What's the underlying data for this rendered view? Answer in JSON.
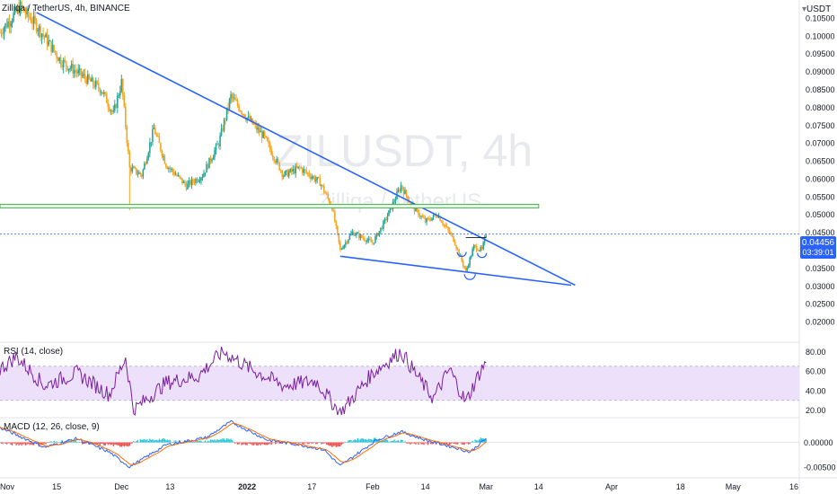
{
  "header": {
    "legend": "Zilliqa / TetherUS, 4h, BINANCE",
    "watermark_symbol": "ZILUSDT, 4h",
    "watermark_name": "Zilliqa / TetherUS"
  },
  "price_axis": {
    "unit": "USDT",
    "ticks": [
      "0.10500",
      "0.10000",
      "0.09500",
      "0.09000",
      "0.08500",
      "0.08000",
      "0.07500",
      "0.07000",
      "0.06500",
      "0.06000",
      "0.05500",
      "0.05000",
      "0.04500",
      "0.04000",
      "0.03500",
      "0.03000",
      "0.02500",
      "0.02000"
    ],
    "current_price": "0.04456",
    "countdown": "03:39:01"
  },
  "rsi": {
    "label": "RSI (14, close)",
    "ticks": [
      "80.00",
      "60.00",
      "40.00",
      "20.00"
    ]
  },
  "macd": {
    "label": "MACD (12, 26, close, 9)",
    "ticks": [
      "0.00000",
      "-0.00500"
    ]
  },
  "time_axis": {
    "ticks": [
      "Nov",
      "15",
      "Dec",
      "13",
      "2022",
      "17",
      "Feb",
      "14",
      "Mar",
      "14",
      "Apr",
      "18",
      "May",
      "16"
    ]
  },
  "colors": {
    "up": "#26a69a",
    "down": "#f5a623",
    "trendline": "#2962ff",
    "support": "#4caf50",
    "rsi_line": "#7b1fa2",
    "rsi_band": "#ede0fb",
    "price_tag": "#2962ff"
  },
  "chart_data": [
    {
      "type": "candlestick",
      "symbol": "ZILUSDT",
      "interval": "4h",
      "ylim": [
        0.017,
        0.108
      ],
      "x_range": [
        "2021-11-01",
        "2022-05-20"
      ],
      "series_path": [
        [
          "2021-11-01",
          0.101
        ],
        [
          "2021-11-06",
          0.108
        ],
        [
          "2021-11-10",
          0.103
        ],
        [
          "2021-11-16",
          0.093
        ],
        [
          "2021-11-21",
          0.089
        ],
        [
          "2021-11-26",
          0.085
        ],
        [
          "2021-11-29",
          0.078
        ],
        [
          "2021-12-01",
          0.087
        ],
        [
          "2021-12-03",
          0.063
        ],
        [
          "2021-12-06",
          0.061
        ],
        [
          "2021-12-09",
          0.074
        ],
        [
          "2021-12-12",
          0.064
        ],
        [
          "2021-12-17",
          0.058
        ],
        [
          "2021-12-21",
          0.061
        ],
        [
          "2021-12-25",
          0.07
        ],
        [
          "2021-12-28",
          0.083
        ],
        [
          "2022-01-01",
          0.077
        ],
        [
          "2022-01-05",
          0.072
        ],
        [
          "2022-01-10",
          0.061
        ],
        [
          "2022-01-14",
          0.063
        ],
        [
          "2022-01-19",
          0.059
        ],
        [
          "2022-01-22",
          0.052
        ],
        [
          "2022-01-24",
          0.04
        ],
        [
          "2022-01-27",
          0.045
        ],
        [
          "2022-02-01",
          0.042
        ],
        [
          "2022-02-04",
          0.048
        ],
        [
          "2022-02-08",
          0.058
        ],
        [
          "2022-02-11",
          0.052
        ],
        [
          "2022-02-14",
          0.048
        ],
        [
          "2022-02-17",
          0.05
        ],
        [
          "2022-02-21",
          0.043
        ],
        [
          "2022-02-24",
          0.034
        ],
        [
          "2022-02-26",
          0.041
        ],
        [
          "2022-02-28",
          0.04
        ],
        [
          "2022-03-01",
          0.0445
        ]
      ],
      "annotations": [
        {
          "type": "trendline",
          "from": [
            "2021-11-10",
            0.1065
          ],
          "to": [
            "2022-03-23",
            0.0302
          ]
        },
        {
          "type": "trendline",
          "from": [
            "2022-01-24",
            0.0383
          ],
          "to": [
            "2022-03-22",
            0.0302
          ]
        },
        {
          "type": "horizontal_band",
          "value": 0.0523,
          "from": "2021-11-01",
          "to": "2022-03-14"
        },
        {
          "type": "horizontal_line",
          "value": 0.0435,
          "from": "2022-02-24",
          "to": "2022-03-01"
        },
        {
          "type": "horizontal_dashed",
          "value": 0.04456
        }
      ]
    },
    {
      "type": "line",
      "name": "RSI (14, close)",
      "ylim": [
        15,
        85
      ],
      "band": [
        30,
        65
      ],
      "series_path": [
        [
          "2021-11-01",
          62
        ],
        [
          "2021-11-05",
          75
        ],
        [
          "2021-11-12",
          45
        ],
        [
          "2021-11-20",
          58
        ],
        [
          "2021-11-28",
          36
        ],
        [
          "2021-12-02",
          74
        ],
        [
          "2021-12-04",
          20
        ],
        [
          "2021-12-12",
          48
        ],
        [
          "2021-12-20",
          55
        ],
        [
          "2021-12-26",
          80
        ],
        [
          "2022-01-02",
          62
        ],
        [
          "2022-01-10",
          45
        ],
        [
          "2022-01-18",
          50
        ],
        [
          "2022-01-24",
          17
        ],
        [
          "2022-02-01",
          58
        ],
        [
          "2022-02-08",
          80
        ],
        [
          "2022-02-12",
          55
        ],
        [
          "2022-02-16",
          32
        ],
        [
          "2022-02-20",
          62
        ],
        [
          "2022-02-24",
          28
        ],
        [
          "2022-02-27",
          55
        ],
        [
          "2022-03-01",
          70
        ]
      ]
    },
    {
      "type": "histogram+line",
      "name": "MACD (12, 26, close, 9)",
      "ylim": [
        -0.0065,
        0.0045
      ],
      "series_path": [
        [
          "2021-11-01",
          0.003
        ],
        [
          "2021-11-12",
          -0.001
        ],
        [
          "2021-11-20",
          0.0008
        ],
        [
          "2021-11-28",
          -0.002
        ],
        [
          "2021-12-03",
          -0.005
        ],
        [
          "2021-12-12",
          -0.0005
        ],
        [
          "2021-12-22",
          0.001
        ],
        [
          "2021-12-28",
          0.0042
        ],
        [
          "2022-01-06",
          0.0005
        ],
        [
          "2022-01-14",
          -0.0005
        ],
        [
          "2022-01-20",
          -0.0015
        ],
        [
          "2022-01-24",
          -0.0048
        ],
        [
          "2022-02-02",
          0.0005
        ],
        [
          "2022-02-08",
          0.0022
        ],
        [
          "2022-02-14",
          0.0005
        ],
        [
          "2022-02-22",
          -0.0012
        ],
        [
          "2022-02-25",
          -0.002
        ],
        [
          "2022-03-01",
          0.0008
        ]
      ]
    }
  ]
}
